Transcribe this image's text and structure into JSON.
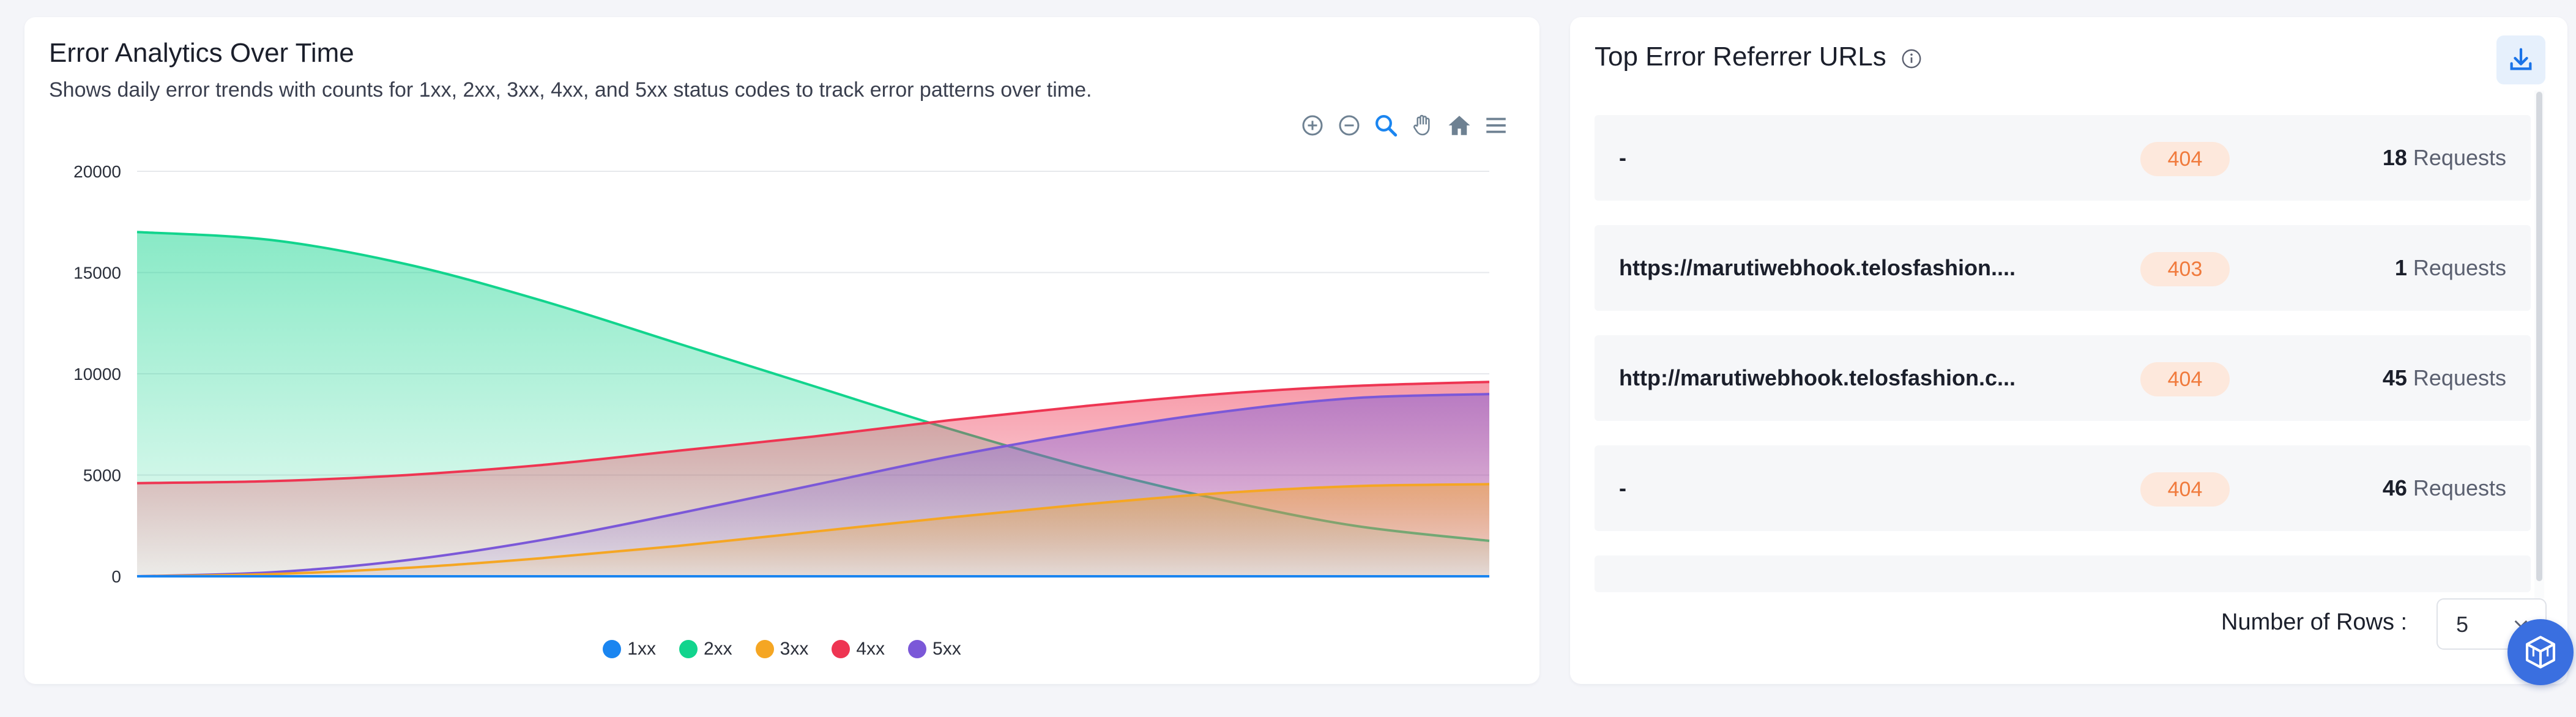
{
  "left_card": {
    "title": "Error Analytics Over Time",
    "subtitle": "Shows daily error trends with counts for 1xx, 2xx, 3xx, 4xx, and 5xx status codes to track error patterns over time.",
    "toolbar": [
      "zoom-in-icon",
      "zoom-out-icon",
      "selection-zoom-icon",
      "pan-hand-icon",
      "home-reset-icon",
      "menu-icon"
    ]
  },
  "chart_data": {
    "type": "area",
    "title": "",
    "xlabel": "",
    "ylabel": "",
    "x_tick_labels": [],
    "ylim": [
      0,
      20000
    ],
    "y_ticks": [
      "20000",
      "15000",
      "10000",
      "5000",
      "0"
    ],
    "x": [
      0,
      1,
      2,
      3,
      4,
      5,
      6,
      7,
      8,
      9,
      10
    ],
    "series": [
      {
        "name": "1xx",
        "color": "#1a85f0",
        "values": [
          0,
          0,
          0,
          0,
          0,
          0,
          0,
          0,
          0,
          0,
          0
        ]
      },
      {
        "name": "2xx",
        "color": "#12d48d",
        "values": [
          17000,
          16600,
          15400,
          13600,
          11500,
          9400,
          7300,
          5400,
          3800,
          2500,
          1750
        ]
      },
      {
        "name": "3xx",
        "color": "#f5a623",
        "values": [
          0,
          110,
          420,
          900,
          1500,
          2200,
          2900,
          3550,
          4100,
          4450,
          4550
        ]
      },
      {
        "name": "4xx",
        "color": "#ee3552",
        "values": [
          4600,
          4700,
          5000,
          5500,
          6200,
          6900,
          7700,
          8400,
          9000,
          9400,
          9600
        ]
      },
      {
        "name": "5xx",
        "color": "#7b58d8",
        "values": [
          0,
          200,
          800,
          1800,
          3100,
          4500,
          5900,
          7100,
          8100,
          8800,
          9000
        ]
      }
    ],
    "legend_position": "bottom",
    "grid": true
  },
  "right_card": {
    "title": "Top Error Referrer URLs",
    "info_icon": "info-icon",
    "download_icon": "download-icon",
    "rows": [
      {
        "url": "-",
        "status": "404",
        "count": "18",
        "unit": "Requests"
      },
      {
        "url": "https://marutiwebhook.telosfashion....",
        "status": "403",
        "count": "1",
        "unit": "Requests"
      },
      {
        "url": "http://marutiwebhook.telosfashion.c...",
        "status": "404",
        "count": "45",
        "unit": "Requests"
      },
      {
        "url": "-",
        "status": "404",
        "count": "46",
        "unit": "Requests"
      }
    ],
    "rows_label": "Number of Rows :",
    "rows_value": "5",
    "status_color": "#f07a3c"
  },
  "fab": {
    "icon": "cube-icon"
  }
}
